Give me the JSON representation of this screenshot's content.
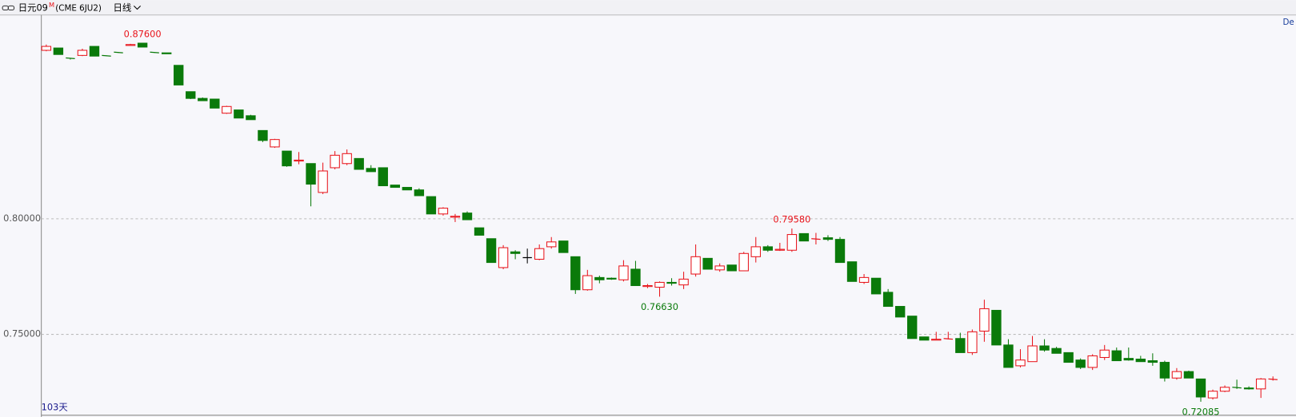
{
  "toolbar": {
    "symbol": "日元09",
    "superscript": "M",
    "contract": "(CME 6JU2)",
    "period": "日线"
  },
  "corner_label": "De",
  "count_label": "103天",
  "chart_data": {
    "type": "candlestick",
    "open": [
      0.8729,
      0.8739,
      0.8696,
      0.8707,
      0.8746,
      0.8707,
      0.8721,
      0.875,
      0.876,
      0.8721,
      0.8718,
      0.8664,
      0.855,
      0.8521,
      0.8518,
      0.8457,
      0.8471,
      0.8446,
      0.8382,
      0.8311,
      0.8293,
      0.825,
      0.8239,
      0.8114,
      0.8221,
      0.8239,
      0.8261,
      0.8218,
      0.8221,
      0.8146,
      0.8136,
      0.8125,
      0.8096,
      0.8021,
      0.8007,
      0.8025,
      0.7961,
      0.7914,
      0.7789,
      0.7857,
      0.7832,
      0.7825,
      0.7879,
      0.7904,
      0.7836,
      0.7693,
      0.7746,
      0.7743,
      0.7736,
      0.7782,
      0.7707,
      0.7704,
      0.7725,
      0.7714,
      0.7761,
      0.7829,
      0.7779,
      0.78,
      0.7775,
      0.7836,
      0.7879,
      0.7864,
      0.7864,
      0.7936,
      0.7911,
      0.7918,
      0.7911,
      0.7814,
      0.7725,
      0.7743,
      0.7682,
      0.7621,
      0.7579,
      0.7489,
      0.7475,
      0.7479,
      0.7482,
      0.7421,
      0.7514,
      0.7604,
      0.7454,
      0.7364,
      0.7382,
      0.745,
      0.7439,
      0.7421,
      0.7389,
      0.7357,
      0.74,
      0.7429,
      0.7396,
      0.7393,
      0.7386,
      0.7379,
      0.7311,
      0.7339,
      0.7307,
      0.7225,
      0.7254,
      0.7271,
      0.7268,
      0.7264,
      0.7304
    ],
    "high": [
      0.8754,
      0.8739,
      0.8696,
      0.8736,
      0.8746,
      0.8707,
      0.8721,
      0.8757,
      0.876,
      0.8721,
      0.8718,
      0.8664,
      0.855,
      0.8525,
      0.8518,
      0.8489,
      0.8471,
      0.845,
      0.8382,
      0.8346,
      0.8293,
      0.8289,
      0.8239,
      0.8243,
      0.8293,
      0.83,
      0.8261,
      0.8232,
      0.8221,
      0.8146,
      0.8136,
      0.8132,
      0.8096,
      0.805,
      0.8021,
      0.8032,
      0.7961,
      0.7914,
      0.7886,
      0.7864,
      0.7871,
      0.7889,
      0.7921,
      0.7904,
      0.7836,
      0.7779,
      0.7754,
      0.7746,
      0.7821,
      0.7818,
      0.7718,
      0.7729,
      0.7743,
      0.7771,
      0.7889,
      0.7829,
      0.7807,
      0.78,
      0.7857,
      0.7921,
      0.7886,
      0.7896,
      0.7958,
      0.7936,
      0.7939,
      0.7929,
      0.7921,
      0.7814,
      0.7761,
      0.7743,
      0.7696,
      0.7621,
      0.7579,
      0.7489,
      0.7511,
      0.7511,
      0.7507,
      0.7521,
      0.765,
      0.7604,
      0.7479,
      0.7436,
      0.7493,
      0.7479,
      0.7446,
      0.7421,
      0.7396,
      0.7414,
      0.7454,
      0.7443,
      0.7443,
      0.7407,
      0.7418,
      0.7386,
      0.7354,
      0.7343,
      0.7307,
      0.7261,
      0.7279,
      0.7304,
      0.7275,
      0.7311,
      0.7318
    ],
    "low": [
      0.8725,
      0.8711,
      0.8689,
      0.8704,
      0.8704,
      0.8704,
      0.8718,
      0.875,
      0.8743,
      0.8718,
      0.8714,
      0.8579,
      0.8518,
      0.8511,
      0.8479,
      0.8454,
      0.8436,
      0.8429,
      0.8332,
      0.8307,
      0.8225,
      0.8236,
      0.8054,
      0.8107,
      0.8214,
      0.8232,
      0.8214,
      0.8204,
      0.8143,
      0.8136,
      0.8125,
      0.81,
      0.8021,
      0.8014,
      0.7986,
      0.7996,
      0.7929,
      0.7811,
      0.7782,
      0.7825,
      0.7807,
      0.7821,
      0.7871,
      0.7854,
      0.7675,
      0.7689,
      0.7721,
      0.7736,
      0.7729,
      0.7711,
      0.77,
      0.7663,
      0.7711,
      0.7696,
      0.775,
      0.7782,
      0.7771,
      0.7775,
      0.7775,
      0.7811,
      0.7857,
      0.7861,
      0.7857,
      0.7904,
      0.7889,
      0.7904,
      0.7811,
      0.7729,
      0.7718,
      0.7675,
      0.7621,
      0.7575,
      0.7482,
      0.7475,
      0.7475,
      0.7479,
      0.7421,
      0.7411,
      0.7468,
      0.7454,
      0.7357,
      0.7357,
      0.7382,
      0.7425,
      0.7418,
      0.7379,
      0.735,
      0.7346,
      0.7389,
      0.7386,
      0.7386,
      0.7382,
      0.7364,
      0.7296,
      0.7304,
      0.7311,
      0.72085,
      0.7218,
      0.725,
      0.7264,
      0.7261,
      0.7225,
      0.73
    ],
    "close": [
      0.8746,
      0.8711,
      0.8693,
      0.8729,
      0.8704,
      0.8704,
      0.8718,
      0.8754,
      0.8743,
      0.8718,
      0.8714,
      0.8579,
      0.8521,
      0.8511,
      0.8479,
      0.8486,
      0.8436,
      0.8429,
      0.8339,
      0.8343,
      0.8229,
      0.8254,
      0.815,
      0.8207,
      0.8275,
      0.8282,
      0.8214,
      0.8204,
      0.8143,
      0.8136,
      0.8125,
      0.81,
      0.8021,
      0.8046,
      0.8011,
      0.7996,
      0.7929,
      0.7811,
      0.7875,
      0.785,
      0.7832,
      0.7871,
      0.79,
      0.7854,
      0.7693,
      0.7754,
      0.7736,
      0.7739,
      0.7796,
      0.7711,
      0.7711,
      0.7725,
      0.7721,
      0.7739,
      0.7836,
      0.7782,
      0.7796,
      0.7775,
      0.785,
      0.7879,
      0.7864,
      0.7868,
      0.7932,
      0.7904,
      0.7914,
      0.7911,
      0.7811,
      0.7729,
      0.7746,
      0.7675,
      0.7621,
      0.7575,
      0.7482,
      0.7475,
      0.7479,
      0.7482,
      0.7421,
      0.7511,
      0.7611,
      0.7454,
      0.7357,
      0.7389,
      0.745,
      0.7432,
      0.7418,
      0.7379,
      0.7357,
      0.7407,
      0.7432,
      0.7386,
      0.7389,
      0.7382,
      0.7379,
      0.7311,
      0.7339,
      0.7311,
      0.7229,
      0.7254,
      0.7271,
      0.7268,
      0.7264,
      0.7307,
      0.7307
    ],
    "up_color": "#e8141b",
    "down_color": "#0a7a0a",
    "flat_color": "#000000",
    "ylim": [
      0.715,
      0.8882
    ],
    "yticks": [
      {
        "value": 0.8,
        "label": "0.80000"
      },
      {
        "value": 0.75,
        "label": "0.75000"
      }
    ],
    "grid": true,
    "annotations": [
      {
        "value": 0.876,
        "label": "0.87600"
      },
      {
        "value": 0.7958,
        "label": "0.79580"
      },
      {
        "value": 0.7663,
        "label": "0.76630"
      },
      {
        "value": 0.72085,
        "label": "0.72085"
      }
    ]
  }
}
